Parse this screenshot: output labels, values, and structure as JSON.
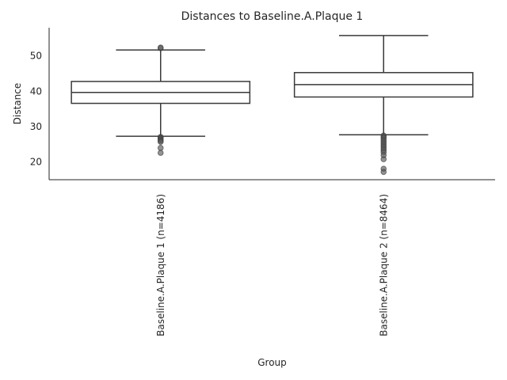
{
  "chart_data": {
    "type": "box",
    "title": "Distances to Baseline.A.Plaque 1",
    "xlabel": "Group",
    "ylabel": "Distance",
    "ylim": [
      15,
      58
    ],
    "yticks": [
      20,
      30,
      40,
      50
    ],
    "grid": false,
    "categories": [
      "Baseline.A.Plaque 1 (n=4186)",
      "Baseline.A.Plaque 2 (n=8464)"
    ],
    "boxes": [
      {
        "whisker_low": 27.3,
        "q1": 36.6,
        "median": 39.7,
        "q3": 42.8,
        "whisker_high": 51.7,
        "fliers": [
          52.2,
          52.4,
          27.1,
          26.9,
          26.6,
          26.3,
          26.0,
          25.7,
          24.0,
          22.6
        ]
      },
      {
        "whisker_low": 27.7,
        "q1": 38.4,
        "median": 41.9,
        "q3": 45.3,
        "whisker_high": 55.8,
        "fliers": [
          27.5,
          27.2,
          26.8,
          26.3,
          25.8,
          25.3,
          24.8,
          24.3,
          23.8,
          23.3,
          22.7,
          21.9,
          20.8,
          18.1,
          17.2
        ]
      }
    ]
  }
}
